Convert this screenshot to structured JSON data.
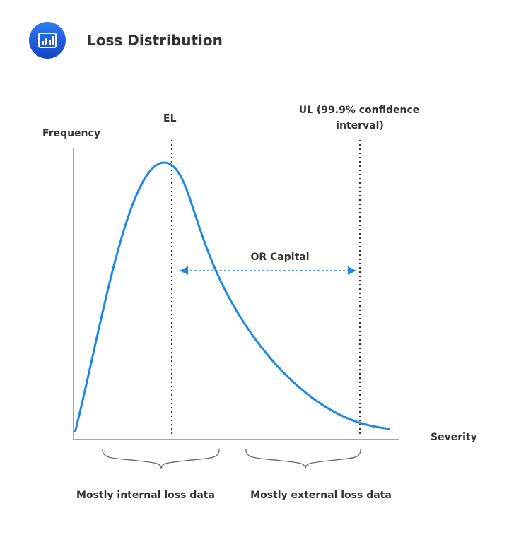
{
  "header": {
    "title": "Loss Distribution",
    "icon": "bar-chart-icon",
    "icon_color": "#1f5fe0"
  },
  "diagram": {
    "y_axis_label": "Frequency",
    "x_axis_label": "Severity",
    "el_label": "EL",
    "ul_label_line1": "UL (99.9% confidence",
    "ul_label_line2": "interval)",
    "capital_label": "OR Capital",
    "left_brace_label": "Mostly internal loss data",
    "right_brace_label": "Mostly external loss data",
    "curve_color": "#1e88e5"
  }
}
